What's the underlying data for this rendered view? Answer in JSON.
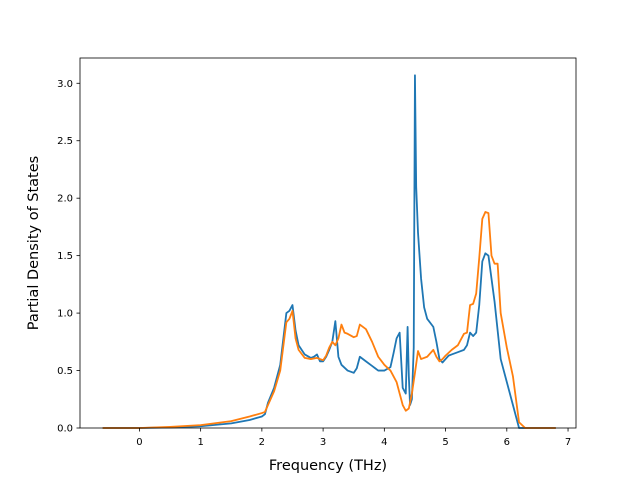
{
  "chart_data": {
    "type": "line",
    "xlabel": "Frequency (THz)",
    "ylabel": "Partial Density of States",
    "xlim": [
      -0.97,
      7.13
    ],
    "ylim": [
      0.0,
      3.22
    ],
    "xticks": [
      0,
      1,
      2,
      3,
      4,
      5,
      6,
      7
    ],
    "yticks": [
      0.0,
      0.5,
      1.0,
      1.5,
      2.0,
      2.5,
      3.0
    ],
    "xtick_labels": [
      "0",
      "1",
      "2",
      "3",
      "4",
      "5",
      "6",
      "7"
    ],
    "ytick_labels": [
      "0.0",
      "0.5",
      "1.0",
      "1.5",
      "2.0",
      "2.5",
      "3.0"
    ],
    "grid": false,
    "legend": "none",
    "series": [
      {
        "color": "#1f77b4",
        "x": [
          -0.6,
          0.0,
          0.5,
          1.0,
          1.5,
          1.8,
          2.0,
          2.05,
          2.1,
          2.2,
          2.3,
          2.4,
          2.45,
          2.5,
          2.55,
          2.6,
          2.7,
          2.8,
          2.85,
          2.9,
          2.95,
          3.0,
          3.05,
          3.1,
          3.15,
          3.2,
          3.25,
          3.3,
          3.4,
          3.5,
          3.55,
          3.6,
          3.7,
          3.8,
          3.85,
          3.9,
          4.0,
          4.1,
          4.15,
          4.2,
          4.25,
          4.3,
          4.35,
          4.38,
          4.4,
          4.42,
          4.45,
          4.48,
          4.5,
          4.52,
          4.55,
          4.6,
          4.65,
          4.7,
          4.8,
          4.85,
          4.9,
          4.95,
          5.0,
          5.05,
          5.1,
          5.2,
          5.3,
          5.35,
          5.4,
          5.45,
          5.5,
          5.55,
          5.6,
          5.65,
          5.7,
          5.8,
          5.9,
          6.0,
          6.1,
          6.15,
          6.2,
          6.3,
          6.8
        ],
        "y": [
          0.0,
          0.0,
          0.005,
          0.015,
          0.04,
          0.07,
          0.1,
          0.12,
          0.22,
          0.35,
          0.55,
          1.0,
          1.02,
          1.07,
          0.85,
          0.72,
          0.64,
          0.61,
          0.62,
          0.64,
          0.58,
          0.58,
          0.62,
          0.68,
          0.75,
          0.93,
          0.62,
          0.55,
          0.5,
          0.48,
          0.52,
          0.62,
          0.58,
          0.54,
          0.52,
          0.5,
          0.5,
          0.53,
          0.65,
          0.78,
          0.83,
          0.35,
          0.3,
          0.88,
          0.45,
          0.2,
          0.25,
          0.7,
          3.07,
          2.1,
          1.7,
          1.3,
          1.05,
          0.95,
          0.88,
          0.75,
          0.6,
          0.57,
          0.6,
          0.63,
          0.64,
          0.66,
          0.68,
          0.72,
          0.83,
          0.8,
          0.83,
          1.07,
          1.45,
          1.52,
          1.5,
          1.1,
          0.6,
          0.4,
          0.2,
          0.1,
          0.0,
          0.0,
          0.0
        ]
      },
      {
        "color": "#ff7f0e",
        "x": [
          -0.6,
          0.0,
          0.5,
          1.0,
          1.5,
          1.8,
          2.0,
          2.05,
          2.1,
          2.2,
          2.3,
          2.4,
          2.45,
          2.5,
          2.55,
          2.6,
          2.7,
          2.8,
          2.9,
          3.0,
          3.05,
          3.1,
          3.15,
          3.2,
          3.25,
          3.3,
          3.35,
          3.4,
          3.5,
          3.55,
          3.6,
          3.7,
          3.8,
          3.9,
          4.0,
          4.1,
          4.2,
          4.25,
          4.3,
          4.35,
          4.4,
          4.45,
          4.5,
          4.55,
          4.6,
          4.7,
          4.8,
          4.85,
          4.9,
          4.95,
          5.0,
          5.1,
          5.2,
          5.3,
          5.35,
          5.4,
          5.45,
          5.5,
          5.55,
          5.6,
          5.65,
          5.7,
          5.75,
          5.8,
          5.85,
          5.9,
          6.0,
          6.1,
          6.15,
          6.2,
          6.3,
          6.8
        ],
        "y": [
          0.0,
          0.0,
          0.01,
          0.025,
          0.06,
          0.1,
          0.13,
          0.14,
          0.2,
          0.32,
          0.5,
          0.92,
          0.95,
          1.02,
          0.78,
          0.68,
          0.61,
          0.6,
          0.61,
          0.59,
          0.63,
          0.7,
          0.75,
          0.72,
          0.78,
          0.9,
          0.83,
          0.82,
          0.79,
          0.8,
          0.9,
          0.86,
          0.75,
          0.62,
          0.55,
          0.5,
          0.4,
          0.3,
          0.2,
          0.15,
          0.17,
          0.3,
          0.48,
          0.67,
          0.6,
          0.62,
          0.68,
          0.62,
          0.58,
          0.6,
          0.63,
          0.68,
          0.72,
          0.82,
          0.83,
          1.07,
          1.08,
          1.17,
          1.48,
          1.82,
          1.88,
          1.87,
          1.5,
          1.43,
          1.43,
          1.0,
          0.7,
          0.45,
          0.25,
          0.05,
          0.0,
          0.0
        ]
      }
    ]
  }
}
